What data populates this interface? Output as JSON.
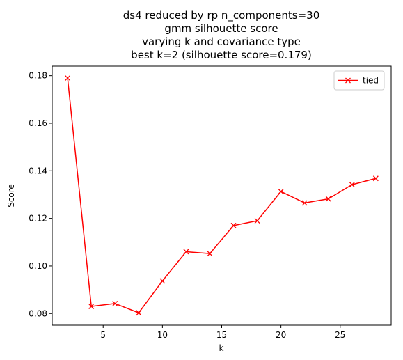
{
  "chart_data": {
    "type": "line",
    "title_lines": [
      "ds4 reduced by rp n_components=30",
      "gmm silhouette score",
      "varying k and covariance type",
      "best k=2 (silhouette score=0.179)"
    ],
    "xlabel": "k",
    "ylabel": "Score",
    "xlim": [
      0.7,
      29.3
    ],
    "ylim": [
      0.0751,
      0.184
    ],
    "xticks": [
      5,
      10,
      15,
      20,
      25
    ],
    "yticks": [
      0.08,
      0.1,
      0.12,
      0.14,
      0.16,
      0.18
    ],
    "xtick_labels": [
      "5",
      "10",
      "15",
      "20",
      "25"
    ],
    "ytick_labels": [
      "0.08",
      "0.10",
      "0.12",
      "0.14",
      "0.16",
      "0.18"
    ],
    "legend_position": "top-right",
    "grid": false,
    "series": [
      {
        "name": "tied",
        "color": "#ff0000",
        "marker": "x",
        "x": [
          2,
          4,
          6,
          8,
          10,
          12,
          14,
          16,
          18,
          20,
          22,
          24,
          26,
          28
        ],
        "y": [
          0.179,
          0.083,
          0.0842,
          0.0803,
          0.0937,
          0.106,
          0.1052,
          0.117,
          0.119,
          0.1313,
          0.1265,
          0.1282,
          0.1342,
          0.1368
        ]
      }
    ]
  }
}
